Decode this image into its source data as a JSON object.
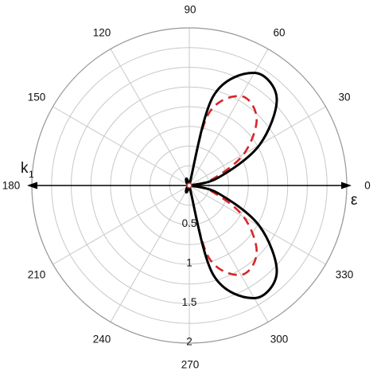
{
  "chart_data": {
    "type": "polar-line",
    "angle_unit": "degrees",
    "angle_ticks": [
      0,
      30,
      60,
      90,
      120,
      150,
      180,
      210,
      240,
      270,
      300,
      330
    ],
    "angle_tick_labels": [
      "0",
      "30",
      "60",
      "90",
      "120",
      "150",
      "180",
      "210",
      "240",
      "270",
      "300",
      "330"
    ],
    "radial_ticks": [
      0.5,
      1,
      1.5,
      2
    ],
    "radial_tick_labels": [
      "0.5",
      "1",
      "1.5",
      "2"
    ],
    "rlim": [
      0,
      2
    ],
    "grid": true,
    "axis_labels": {
      "left_main": "k",
      "left_sub": "1",
      "right": "ε"
    },
    "series": [
      {
        "style": "solid",
        "color": "#000000",
        "points": [
          {
            "theta": 270,
            "r": 0
          },
          {
            "theta": 285,
            "r": 1.17
          },
          {
            "theta": 300,
            "r": 1.65
          },
          {
            "theta": 315,
            "r": 1.57
          },
          {
            "theta": 330,
            "r": 1.03
          },
          {
            "theta": 345,
            "r": 0.38
          },
          {
            "theta": 360,
            "r": 0
          }
        ]
      },
      {
        "style": "dashed",
        "color": "#d62728",
        "points": [
          {
            "theta": 270,
            "r": 0
          },
          {
            "theta": 285,
            "r": 0.94
          },
          {
            "theta": 300,
            "r": 1.31
          },
          {
            "theta": 315,
            "r": 1.21
          },
          {
            "theta": 330,
            "r": 0.8
          },
          {
            "theta": 345,
            "r": 0.3
          },
          {
            "theta": 360,
            "r": 0
          }
        ]
      }
    ]
  }
}
